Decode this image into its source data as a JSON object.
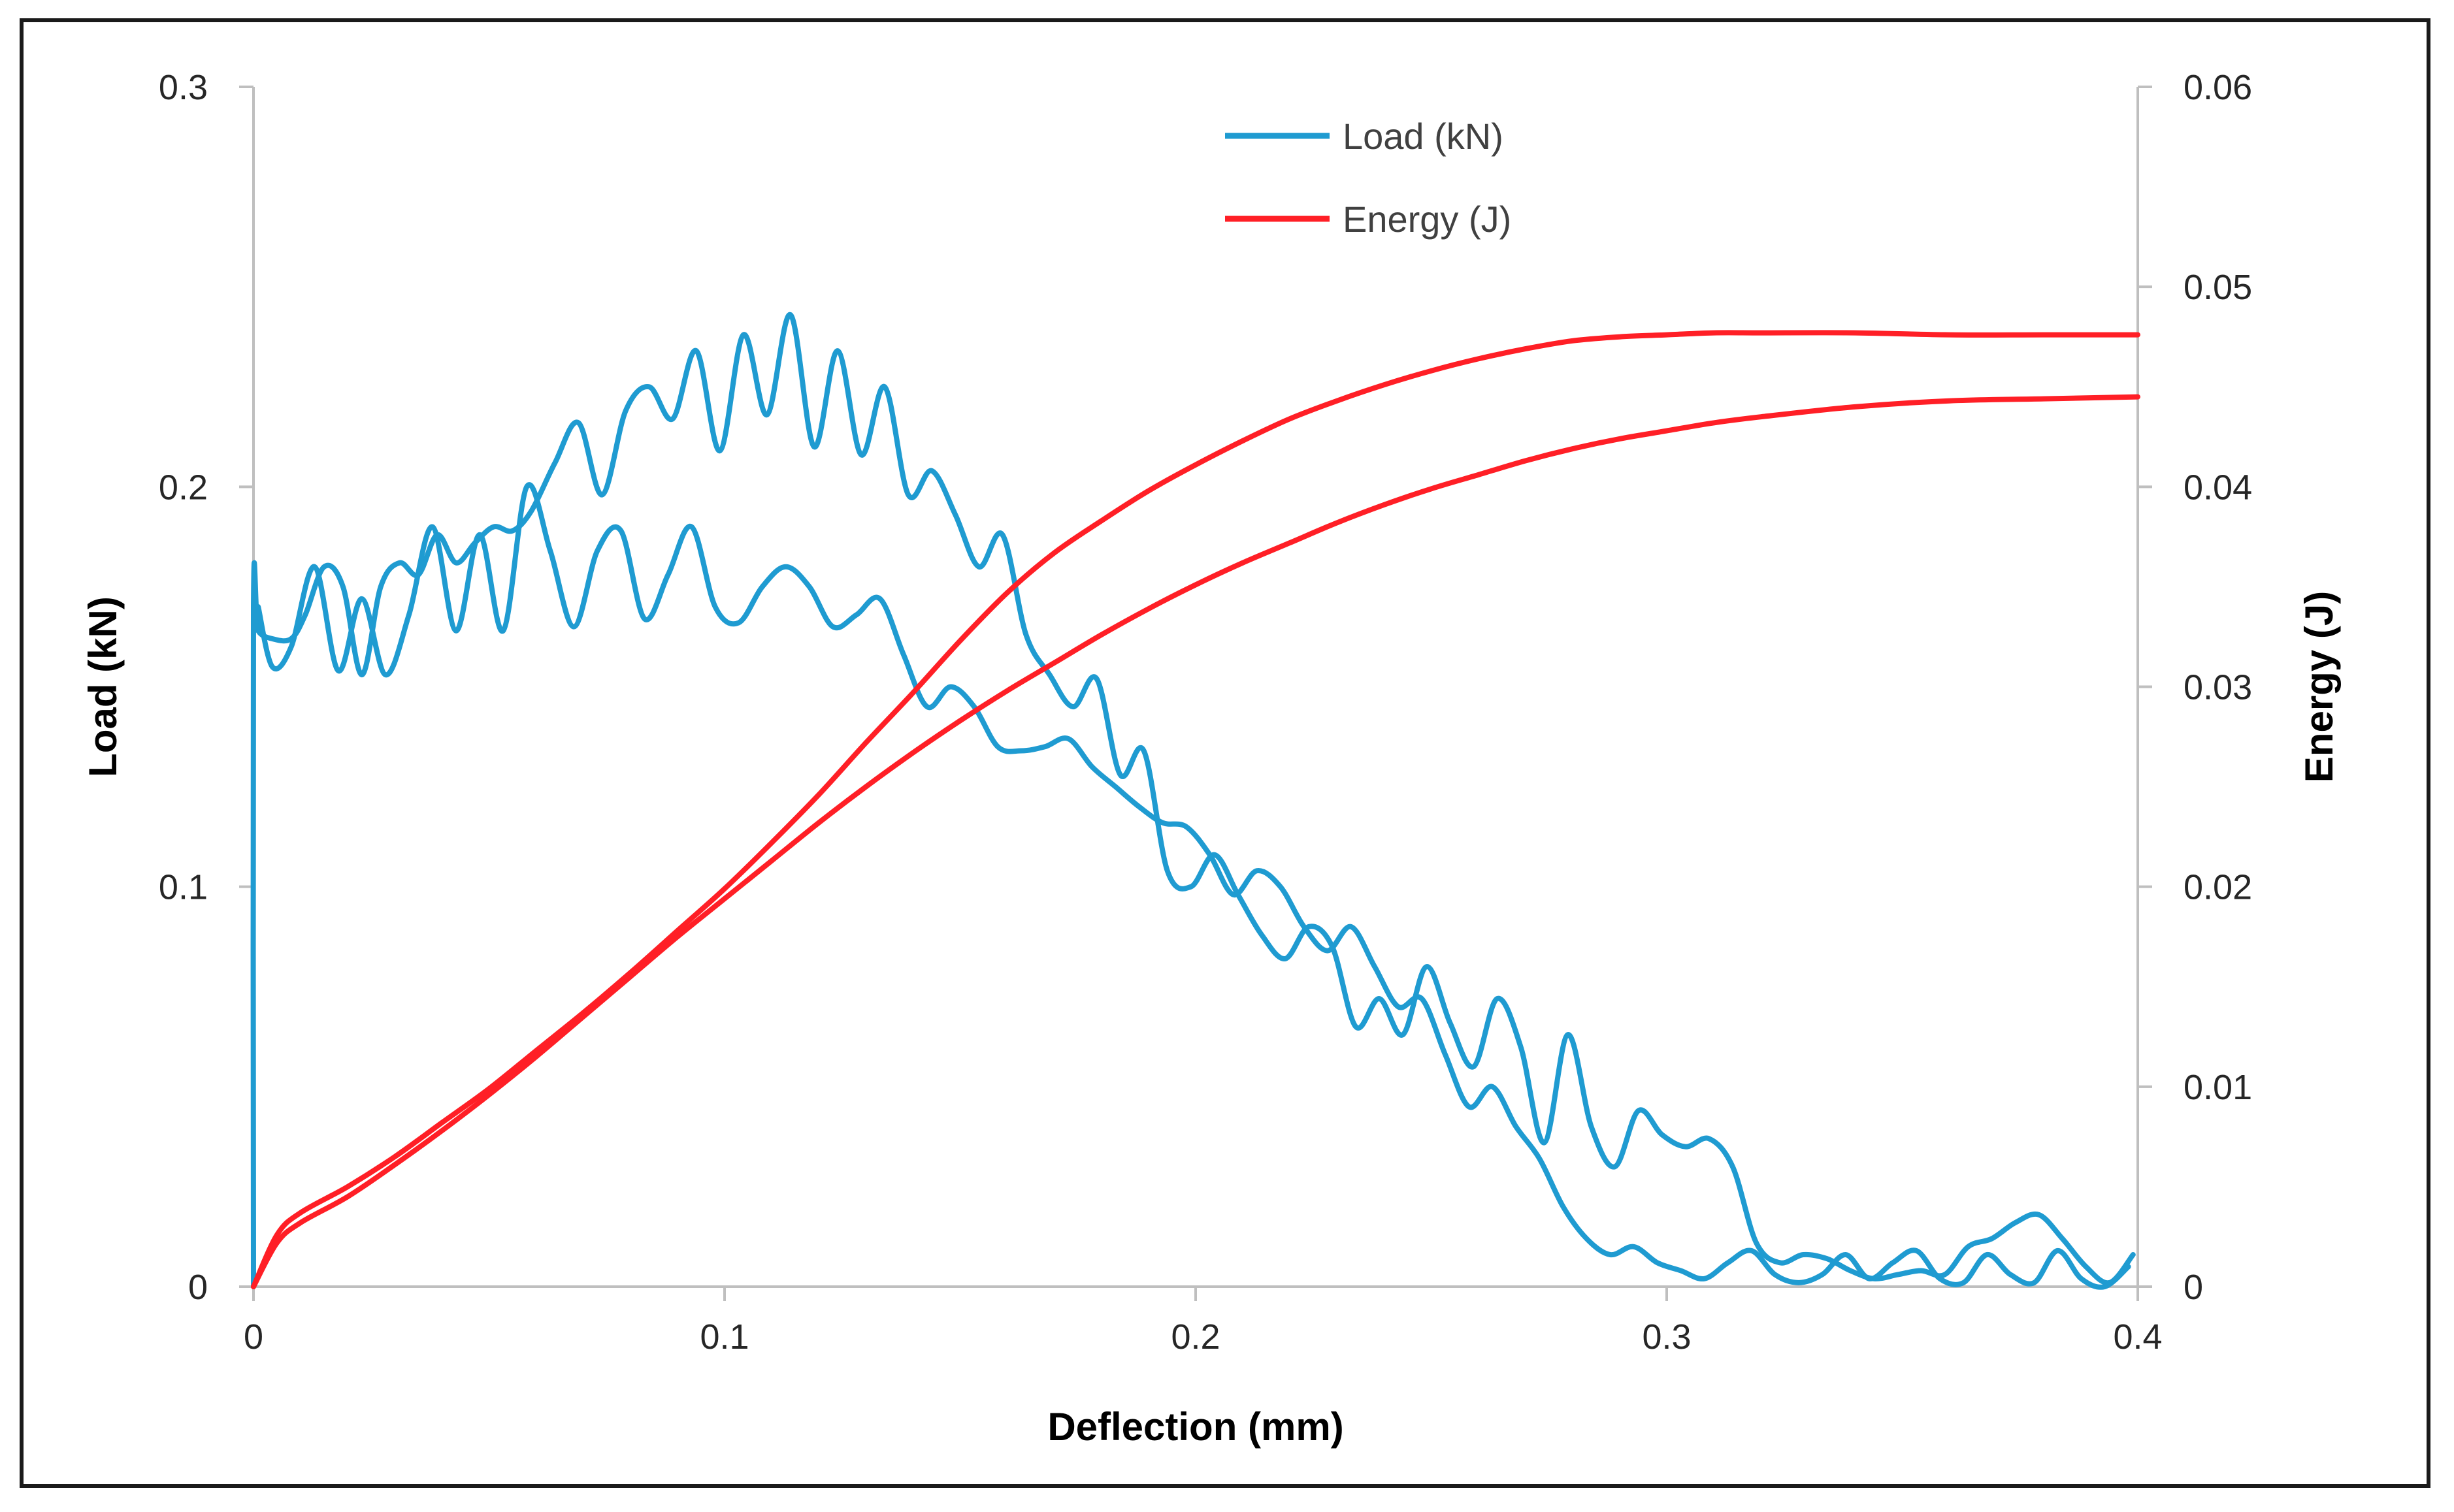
{
  "chart_data": {
    "type": "line",
    "title": "",
    "xlabel": "Deflection (mm)",
    "ylabel": "Load (kN)",
    "y2label": "Energy (J)",
    "xlim": [
      0,
      0.4
    ],
    "ylim": [
      0,
      0.3
    ],
    "y2lim": [
      0,
      0.06
    ],
    "xticks": [
      "0",
      "0.1",
      "0.2",
      "0.3",
      "0.4"
    ],
    "yticks": [
      "0",
      "0.1",
      "0.2",
      "0.3"
    ],
    "y2ticks": [
      "0",
      "0.01",
      "0.02",
      "0.03",
      "0.04",
      "0.05",
      "0.06"
    ],
    "grid": false,
    "legend_position": "top-center",
    "series": [
      {
        "name": "Load (kN)",
        "axis": "left",
        "color": "#1f9bd1",
        "curves": [
          {
            "x": [
              0,
              0,
              0.001,
              0.004,
              0.008,
              0.011,
              0.015,
              0.019,
              0.023,
              0.027,
              0.031,
              0.035,
              0.039,
              0.043,
              0.047,
              0.051,
              0.055,
              0.059,
              0.064,
              0.069,
              0.074,
              0.079,
              0.084,
              0.089,
              0.094,
              0.099,
              0.104,
              0.109,
              0.114,
              0.119,
              0.124,
              0.129,
              0.134,
              0.139,
              0.144,
              0.149,
              0.154,
              0.159,
              0.164,
              0.169,
              0.174,
              0.179,
              0.184,
              0.189,
              0.194,
              0.199,
              0.204,
              0.209,
              0.214,
              0.219,
              0.224,
              0.229,
              0.234,
              0.239,
              0.244,
              0.249,
              0.254,
              0.259,
              0.264,
              0.269,
              0.274,
              0.279,
              0.284,
              0.289,
              0.294,
              0.299,
              0.304,
              0.309,
              0.314,
              0.319,
              0.324,
              0.329,
              0.334,
              0.339,
              0.344,
              0.349,
              0.354,
              0.359,
              0.364,
              0.369,
              0.374,
              0.379,
              0.384,
              0.389,
              0.394,
              0.399
            ],
            "y": [
              0,
              0.17,
              0.164,
              0.162,
              0.162,
              0.168,
              0.18,
              0.175,
              0.153,
              0.175,
              0.181,
              0.178,
              0.188,
              0.181,
              0.186,
              0.19,
              0.189,
              0.194,
              0.206,
              0.216,
              0.198,
              0.219,
              0.225,
              0.217,
              0.234,
              0.209,
              0.238,
              0.218,
              0.243,
              0.21,
              0.234,
              0.208,
              0.225,
              0.198,
              0.204,
              0.193,
              0.18,
              0.188,
              0.163,
              0.153,
              0.145,
              0.152,
              0.128,
              0.134,
              0.104,
              0.1,
              0.108,
              0.098,
              0.088,
              0.082,
              0.09,
              0.085,
              0.065,
              0.072,
              0.063,
              0.08,
              0.066,
              0.055,
              0.072,
              0.06,
              0.036,
              0.063,
              0.04,
              0.03,
              0.044,
              0.038,
              0.035,
              0.037,
              0.03,
              0.011,
              0.006,
              0.008,
              0.007,
              0.004,
              0.002,
              0.003,
              0.004,
              0.003,
              0.01,
              0.012,
              0.016,
              0.018,
              0.012,
              0.005,
              0.001,
              0.008
            ]
          },
          {
            "x": [
              0.001,
              0.004,
              0.008,
              0.013,
              0.018,
              0.023,
              0.028,
              0.033,
              0.038,
              0.043,
              0.048,
              0.053,
              0.058,
              0.063,
              0.068,
              0.073,
              0.078,
              0.083,
              0.088,
              0.093,
              0.098,
              0.103,
              0.108,
              0.113,
              0.118,
              0.123,
              0.128,
              0.133,
              0.138,
              0.143,
              0.148,
              0.153,
              0.158,
              0.163,
              0.168,
              0.173,
              0.178,
              0.183,
              0.188,
              0.193,
              0.198,
              0.203,
              0.208,
              0.213,
              0.218,
              0.223,
              0.228,
              0.233,
              0.238,
              0.243,
              0.248,
              0.253,
              0.258,
              0.263,
              0.268,
              0.273,
              0.278,
              0.283,
              0.288,
              0.293,
              0.298,
              0.303,
              0.308,
              0.313,
              0.318,
              0.323,
              0.328,
              0.333,
              0.338,
              0.343,
              0.348,
              0.353,
              0.358,
              0.363,
              0.368,
              0.373,
              0.378,
              0.383,
              0.388,
              0.393,
              0.398
            ],
            "y": [
              0.17,
              0.155,
              0.16,
              0.18,
              0.154,
              0.172,
              0.153,
              0.168,
              0.19,
              0.164,
              0.188,
              0.164,
              0.2,
              0.184,
              0.165,
              0.184,
              0.189,
              0.167,
              0.178,
              0.19,
              0.17,
              0.166,
              0.175,
              0.18,
              0.175,
              0.165,
              0.168,
              0.172,
              0.158,
              0.145,
              0.15,
              0.145,
              0.135,
              0.134,
              0.135,
              0.137,
              0.13,
              0.125,
              0.12,
              0.116,
              0.115,
              0.108,
              0.098,
              0.104,
              0.1,
              0.09,
              0.084,
              0.09,
              0.08,
              0.07,
              0.072,
              0.058,
              0.045,
              0.05,
              0.04,
              0.032,
              0.02,
              0.012,
              0.008,
              0.01,
              0.006,
              0.004,
              0.002,
              0.006,
              0.009,
              0.003,
              0.001,
              0.003,
              0.008,
              0.002,
              0.006,
              0.009,
              0.002,
              0.001,
              0.008,
              0.003,
              0.001,
              0.009,
              0.002,
              0.0,
              0.005
            ]
          }
        ]
      },
      {
        "name": "Energy (J)",
        "axis": "right",
        "color": "#ff1f26",
        "curves": [
          {
            "x": [
              0,
              0.005,
              0.01,
              0.02,
              0.03,
              0.04,
              0.05,
              0.06,
              0.07,
              0.08,
              0.09,
              0.1,
              0.11,
              0.12,
              0.13,
              0.14,
              0.15,
              0.16,
              0.17,
              0.18,
              0.19,
              0.2,
              0.21,
              0.22,
              0.23,
              0.24,
              0.25,
              0.26,
              0.27,
              0.28,
              0.29,
              0.3,
              0.31,
              0.32,
              0.34,
              0.36,
              0.38,
              0.4
            ],
            "y": [
              0,
              0.0026,
              0.0037,
              0.005,
              0.0065,
              0.0082,
              0.0099,
              0.0118,
              0.0137,
              0.0157,
              0.0178,
              0.0199,
              0.0222,
              0.0246,
              0.0272,
              0.0297,
              0.0323,
              0.0347,
              0.0367,
              0.0383,
              0.0398,
              0.0411,
              0.0423,
              0.0434,
              0.0443,
              0.0451,
              0.0458,
              0.0464,
              0.0469,
              0.0473,
              0.0475,
              0.0476,
              0.0477,
              0.0477,
              0.0477,
              0.0476,
              0.0476,
              0.0476
            ]
          },
          {
            "x": [
              0,
              0.005,
              0.01,
              0.02,
              0.03,
              0.04,
              0.05,
              0.06,
              0.07,
              0.08,
              0.09,
              0.1,
              0.11,
              0.12,
              0.13,
              0.14,
              0.15,
              0.16,
              0.17,
              0.18,
              0.19,
              0.2,
              0.21,
              0.22,
              0.23,
              0.24,
              0.25,
              0.26,
              0.27,
              0.28,
              0.29,
              0.3,
              0.31,
              0.32,
              0.34,
              0.36,
              0.38,
              0.4
            ],
            "y": [
              0,
              0.0022,
              0.0032,
              0.0045,
              0.0061,
              0.0078,
              0.0096,
              0.0115,
              0.0135,
              0.0155,
              0.0175,
              0.0194,
              0.0213,
              0.0232,
              0.025,
              0.0267,
              0.0283,
              0.0298,
              0.0312,
              0.0326,
              0.0339,
              0.0351,
              0.0362,
              0.0372,
              0.0382,
              0.0391,
              0.0399,
              0.0406,
              0.0413,
              0.0419,
              0.0424,
              0.0428,
              0.0432,
              0.0435,
              0.044,
              0.0443,
              0.0444,
              0.0445
            ]
          }
        ]
      }
    ]
  }
}
